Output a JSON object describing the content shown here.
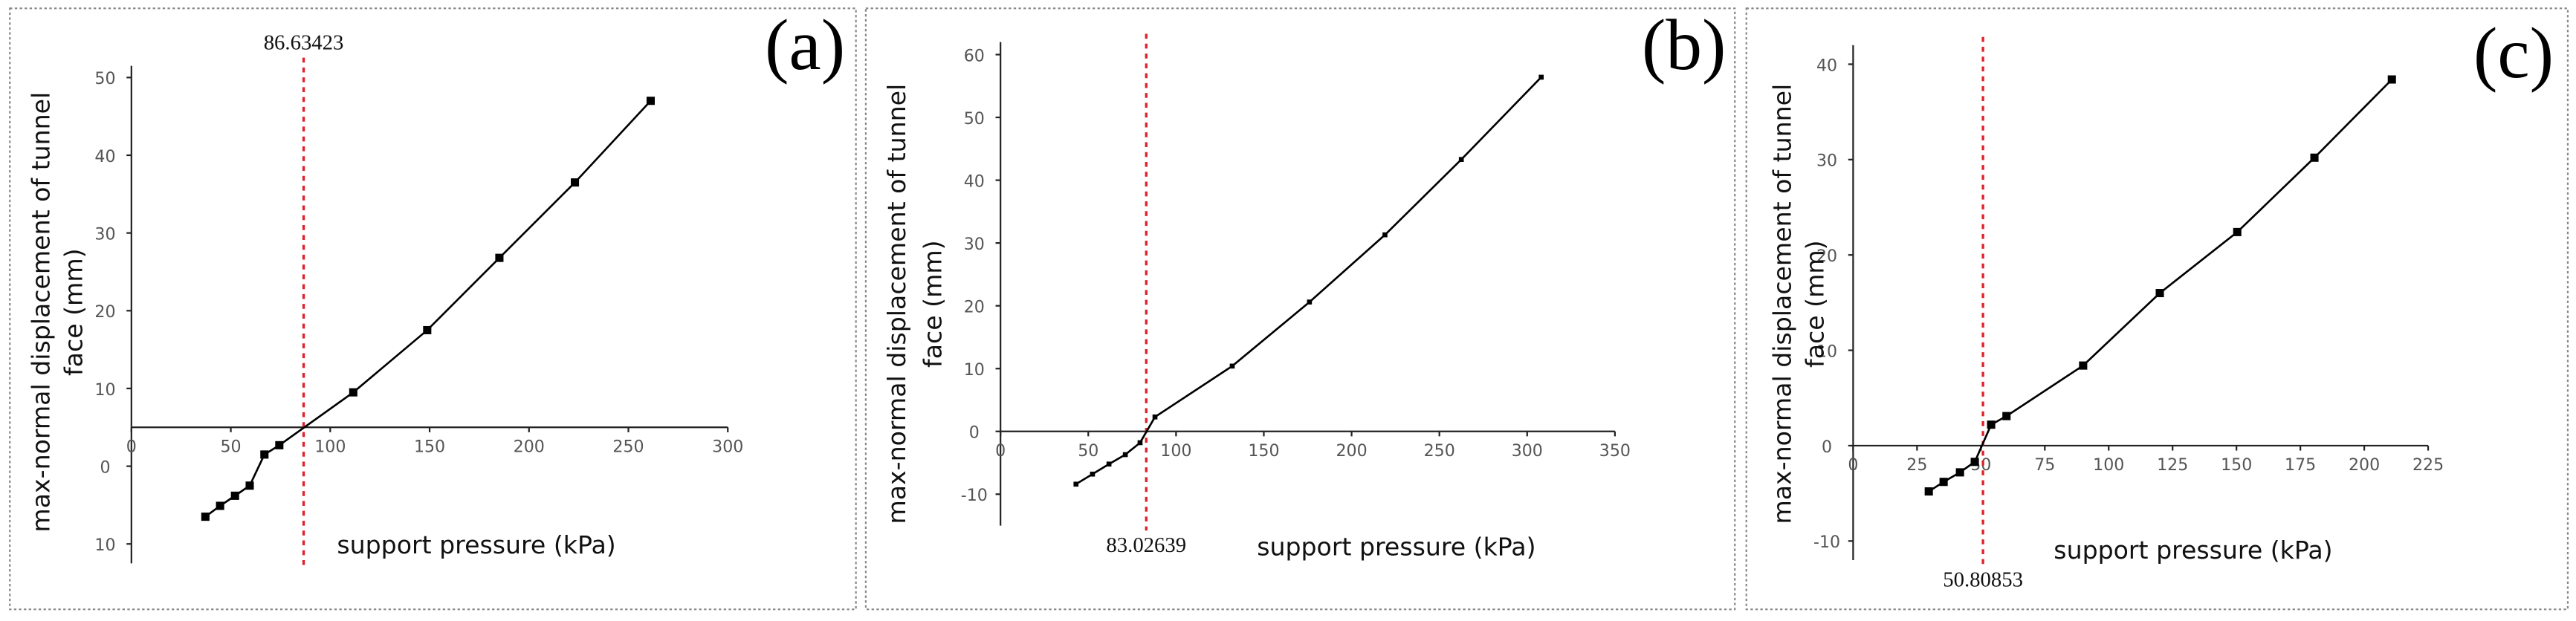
{
  "chart_data": [
    {
      "type": "line",
      "panel_label": "(a)",
      "ylabel": [
        "max-normal displacement of tunnel",
        "face (mm)"
      ],
      "xlabel": "support pressure (kPa)",
      "series": [
        {
          "name": "max-normal displacement",
          "color": "#000000",
          "x": [
            37.2,
            44.6,
            52.1,
            59.5,
            66.9,
            74.4,
            111.6,
            148.8,
            185.1,
            223.1,
            261.2
          ],
          "values": [
            -6.5,
            -5.1,
            -3.8,
            -2.5,
            1.5,
            2.7,
            9.5,
            17.5,
            26.8,
            36.5,
            47.0
          ]
        }
      ],
      "xlim": [
        0,
        300
      ],
      "xticks": [
        0,
        50,
        100,
        150,
        200,
        250,
        300
      ],
      "ylim": [
        -12.5,
        51.5
      ],
      "yticks": [
        {
          "value": -10,
          "label": "10"
        },
        0,
        10,
        20,
        30,
        40,
        50
      ],
      "x_axis_crossing": 5,
      "vline": {
        "x": 86.63423,
        "color": "#e0202a",
        "label_position": "top"
      }
    },
    {
      "type": "line",
      "panel_label": "(b)",
      "ylabel": [
        "max-normal displacement of tunnel",
        "face (mm)"
      ],
      "xlabel": "support pressure (kPa)",
      "series": [
        {
          "name": "max-normal displacement",
          "color": "#000000",
          "x": [
            43,
            52.4,
            61.8,
            71.1,
            79.5,
            88,
            132,
            176,
            219,
            262.5,
            308
          ],
          "values": [
            -8.4,
            -6.8,
            -5.2,
            -3.7,
            -1.8,
            2.3,
            10.4,
            20.6,
            31.3,
            43.3,
            56.4
          ]
        }
      ],
      "xlim": [
        0,
        350
      ],
      "xticks": [
        0,
        50,
        100,
        150,
        200,
        250,
        300,
        350
      ],
      "ylim": [
        -15,
        62
      ],
      "yticks": [
        -10,
        0,
        10,
        20,
        30,
        40,
        50,
        60
      ],
      "x_axis_crossing": 0,
      "vline": {
        "x": 83.02639,
        "color": "#e0202a",
        "label_position": "bottom"
      }
    },
    {
      "type": "line",
      "panel_label": "(c)",
      "ylabel": [
        "max-normal displacement of tunnel",
        "face (mm)"
      ],
      "xlabel": "support pressure (kPa)",
      "series": [
        {
          "name": "max-normal displacement",
          "color": "#000000",
          "x": [
            29.6,
            35.4,
            41.8,
            47.6,
            54,
            60,
            90,
            120,
            150.3,
            180.5,
            210.8
          ],
          "values": [
            -4.8,
            -3.8,
            -2.8,
            -1.7,
            2.2,
            3.1,
            8.4,
            16,
            22.4,
            30.2,
            38.4
          ]
        }
      ],
      "xlim": [
        0,
        225
      ],
      "xticks": [
        0,
        25,
        50,
        75,
        100,
        125,
        150,
        175,
        200,
        225
      ],
      "ylim": [
        -12,
        42
      ],
      "yticks": [
        -10,
        0,
        10,
        20,
        30,
        40
      ],
      "x_axis_crossing": 0,
      "vline": {
        "x": 50.80853,
        "color": "#e0202a",
        "label_position": "bottom"
      }
    }
  ]
}
